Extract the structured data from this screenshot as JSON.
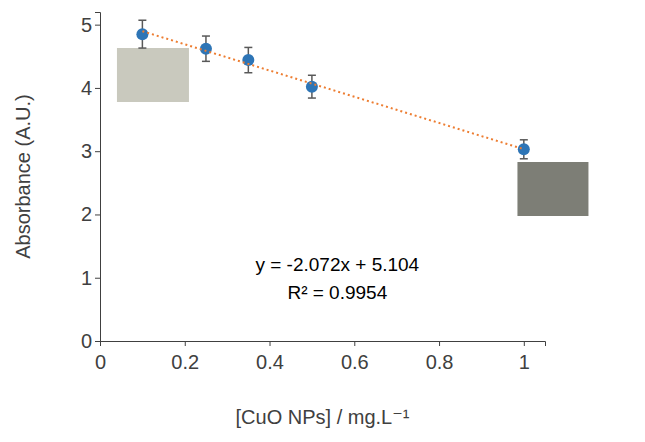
{
  "chart_data": {
    "type": "scatter",
    "x_label": "[CuO NPs] / mg.L⁻¹",
    "y_label": "Absorbance (A.U.)",
    "xlim": [
      0,
      1.05
    ],
    "xticks": [
      0,
      0.2,
      0.4,
      0.6,
      0.8,
      1
    ],
    "ylim": [
      0,
      5.2
    ],
    "yticks": [
      0,
      1,
      2,
      3,
      4,
      5
    ],
    "grid": false,
    "series": [
      {
        "type": "scatter",
        "color": "#2e75b6",
        "marker": "circle",
        "x": [
          0.1,
          0.25,
          0.35,
          0.5,
          1
        ],
        "values": [
          4.85,
          4.62,
          4.44,
          4.02,
          3.03
        ],
        "errors": [
          0.22,
          0.2,
          0.2,
          0.18,
          0.15
        ]
      },
      {
        "type": "line",
        "color": "#ed7d31",
        "line_style": "dotted",
        "x": [
          0.1,
          1
        ],
        "values": [
          4.897,
          3.032
        ]
      }
    ],
    "annotations": [
      "y = -2.072x + 5.104",
      "R² = 0.9954"
    ]
  }
}
